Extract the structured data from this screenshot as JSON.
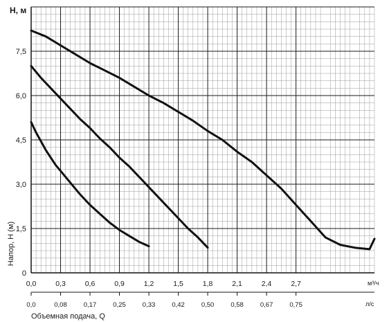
{
  "chart_data": {
    "type": "line",
    "y_title": "H, м",
    "y_axis_label": "Напор, H (м)",
    "x_unit_label": "м³/ч",
    "x2_unit_label": "л/с",
    "x2_title": "Объемная подача, Q",
    "xlim": [
      0,
      3.5
    ],
    "ylim": [
      0,
      9
    ],
    "x_ticks": [
      "0,0",
      "0,3",
      "0,6",
      "0,9",
      "1,2",
      "1,5",
      "1,8",
      "2,1",
      "2,4",
      "2,7"
    ],
    "x_tick_values": [
      0,
      0.3,
      0.6,
      0.9,
      1.2,
      1.5,
      1.8,
      2.1,
      2.4,
      2.7
    ],
    "x2_ticks": [
      "0,0",
      "0,08",
      "0,17",
      "0,25",
      "0,33",
      "0,42",
      "0,50",
      "0,58",
      "0,67",
      "0,75"
    ],
    "y_ticks": [
      "0",
      "1,5",
      "3,0",
      "4,5",
      "6,0",
      "7,5"
    ],
    "y_tick_values": [
      0,
      1.5,
      3.0,
      4.5,
      6.0,
      7.5
    ],
    "grid": true,
    "series": [
      {
        "x": [
          0,
          0.15,
          0.3,
          0.45,
          0.6,
          0.75,
          0.9,
          1.05,
          1.2,
          1.35,
          1.5,
          1.65,
          1.8,
          1.95,
          2.1,
          2.25,
          2.4,
          2.55,
          2.7,
          2.85,
          3.0,
          3.15,
          3.3,
          3.45,
          3.5
        ],
        "y": [
          8.2,
          8.0,
          7.7,
          7.4,
          7.1,
          6.85,
          6.6,
          6.3,
          6.0,
          5.75,
          5.45,
          5.15,
          4.8,
          4.5,
          4.1,
          3.75,
          3.3,
          2.85,
          2.3,
          1.75,
          1.2,
          0.95,
          0.85,
          0.8,
          1.15
        ]
      },
      {
        "x": [
          0,
          0.1,
          0.2,
          0.3,
          0.4,
          0.5,
          0.6,
          0.7,
          0.8,
          0.9,
          1.0,
          1.1,
          1.2,
          1.3,
          1.4,
          1.5,
          1.6,
          1.7,
          1.8
        ],
        "y": [
          7.0,
          6.6,
          6.25,
          5.9,
          5.55,
          5.2,
          4.9,
          4.55,
          4.25,
          3.9,
          3.6,
          3.25,
          2.9,
          2.55,
          2.2,
          1.85,
          1.5,
          1.2,
          0.85
        ]
      },
      {
        "x": [
          0,
          0.05,
          0.1,
          0.15,
          0.2,
          0.25,
          0.3,
          0.4,
          0.5,
          0.6,
          0.7,
          0.8,
          0.9,
          1.0,
          1.1,
          1.2
        ],
        "y": [
          5.1,
          4.75,
          4.45,
          4.15,
          3.9,
          3.65,
          3.45,
          3.05,
          2.65,
          2.3,
          2.0,
          1.7,
          1.45,
          1.25,
          1.05,
          0.9
        ]
      }
    ]
  }
}
